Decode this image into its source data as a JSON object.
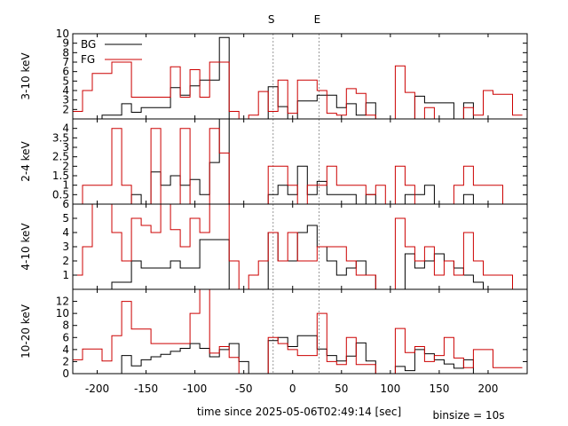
{
  "chart_data": {
    "type": "line",
    "step": true,
    "xlabel": "time since 2025-05-06T02:49:14 [sec]",
    "annotation": "binsize = 10s",
    "markers": [
      {
        "label": "S",
        "x": -20
      },
      {
        "label": "E",
        "x": 27
      }
    ],
    "xlim": [
      -225,
      240
    ],
    "xticks": [
      -200,
      -150,
      -100,
      -50,
      0,
      50,
      100,
      150,
      200
    ],
    "x_edges": [
      -225,
      -215,
      -205,
      -195,
      -185,
      -175,
      -165,
      -155,
      -145,
      -135,
      -125,
      -115,
      -105,
      -95,
      -85,
      -75,
      -65,
      -55,
      -45,
      -35,
      -25,
      -15,
      -5,
      5,
      15,
      25,
      35,
      45,
      55,
      65,
      75,
      85,
      95,
      105,
      115,
      125,
      135,
      145,
      155,
      165,
      175,
      185,
      195,
      205,
      215,
      225,
      235
    ],
    "legend": {
      "placement": "top-left",
      "entries": [
        {
          "name": "BG",
          "color": "#000000"
        },
        {
          "name": "FG",
          "color": "#cc0000"
        }
      ]
    },
    "panels": [
      {
        "ylabel": "3-10 keV",
        "ylim": [
          1,
          10
        ],
        "yticks": [
          2,
          3,
          4,
          5,
          6,
          7,
          8,
          9,
          10
        ],
        "series": [
          {
            "name": "BG",
            "values": [
              1,
              1,
              1,
              1.4,
              1.4,
              2.6,
              1.7,
              2.2,
              2.2,
              2.2,
              4.3,
              3.5,
              4.5,
              5.1,
              5.1,
              9.6,
              1,
              1,
              1,
              1,
              4.4,
              2.3,
              1,
              2.9,
              2.9,
              3.5,
              3.5,
              2.2,
              2.6,
              1.4,
              2.7,
              1,
              1,
              1,
              1,
              3.4,
              2.7,
              2.7,
              2.7,
              1,
              2.7,
              1,
              1,
              1,
              1,
              1
            ]
          },
          {
            "name": "FG",
            "values": [
              1.8,
              4,
              5.8,
              5.8,
              7,
              7,
              3.3,
              3.3,
              3.3,
              3.3,
              6.5,
              3.3,
              6.2,
              3.3,
              7,
              7,
              1.8,
              1,
              1.4,
              3.9,
              1.8,
              5.1,
              1.6,
              5.1,
              5.1,
              4,
              1.6,
              1.4,
              4.2,
              3.7,
              1.4,
              1,
              1,
              6.6,
              3.8,
              1,
              2.2,
              1,
              1,
              1,
              2.2,
              1.4,
              4,
              3.6,
              3.6,
              1.4
            ]
          }
        ]
      },
      {
        "ylabel": "2-4 keV",
        "ylim": [
          0,
          4.5
        ],
        "yticks": [
          0.5,
          1,
          1.5,
          2,
          2.5,
          3,
          3.5,
          4
        ],
        "series": [
          {
            "name": "BG",
            "values": [
              0,
              0,
              0,
              0,
              0,
              0,
              0.5,
              0,
              1.7,
              1.0,
              1.5,
              1.0,
              1.3,
              0.5,
              2.2,
              4.5,
              0,
              0,
              0,
              0,
              0.5,
              1.0,
              0.5,
              2.0,
              0.5,
              1.2,
              0.5,
              0.5,
              0.5,
              0,
              0.5,
              0,
              0,
              0,
              0.5,
              0.5,
              1.0,
              0,
              0,
              0,
              0.5,
              0,
              0,
              0,
              0,
              0
            ]
          },
          {
            "name": "FG",
            "values": [
              0,
              1,
              1,
              1,
              4,
              1,
              0,
              0,
              4,
              0,
              0,
              4,
              0,
              0,
              4,
              2.7,
              0,
              0,
              0,
              0,
              2,
              2,
              1,
              0,
              1,
              1,
              2,
              1,
              1,
              1,
              0.5,
              1,
              0,
              2,
              1,
              0,
              0,
              0,
              0,
              1,
              2,
              1,
              1,
              1,
              0,
              0
            ]
          }
        ]
      },
      {
        "ylabel": "4-10 keV",
        "ylim": [
          0,
          6
        ],
        "yticks": [
          1,
          2,
          3,
          4,
          5,
          6
        ],
        "series": [
          {
            "name": "BG",
            "values": [
              0,
              0,
              0,
              0,
              0.5,
              0.5,
              2,
              1.5,
              1.5,
              1.5,
              2,
              1.5,
              1.5,
              3.5,
              3.5,
              3.5,
              0,
              0,
              0,
              0,
              4,
              2,
              2,
              4,
              4.5,
              3,
              2,
              1,
              1.5,
              2,
              1,
              0,
              0,
              0,
              2.5,
              1.5,
              2,
              2.5,
              2,
              1.5,
              1,
              0.5,
              0,
              0,
              0,
              0
            ]
          },
          {
            "name": "FG",
            "values": [
              1,
              3,
              6,
              6,
              4,
              2,
              5,
              4.5,
              4,
              6,
              4.2,
              3,
              5,
              4,
              6,
              6,
              2,
              0,
              1,
              2,
              4,
              2,
              4,
              2,
              2,
              3,
              3,
              3,
              2,
              1,
              1,
              0,
              0,
              5,
              3,
              2,
              3,
              1,
              2,
              1,
              4,
              2,
              1,
              1,
              1,
              0
            ]
          }
        ]
      },
      {
        "ylabel": "10-20 keV",
        "ylim": [
          0,
          14
        ],
        "yticks": [
          0,
          2,
          4,
          6,
          8,
          10,
          12
        ],
        "series": [
          {
            "name": "BG",
            "values": [
              0,
              0,
              0,
              0,
              0,
              3,
              1.3,
              2.3,
              2.8,
              3.2,
              3.7,
              4.2,
              5,
              4.2,
              2.8,
              4,
              5,
              2,
              0,
              0,
              5.5,
              6,
              4.5,
              6.3,
              6.3,
              4.1,
              3,
              2.1,
              2.9,
              5.1,
              2.1,
              0,
              0,
              1.2,
              0.5,
              4,
              3.3,
              2.3,
              1.6,
              0.9,
              2.3,
              0,
              0,
              0,
              0,
              0
            ]
          },
          {
            "name": "FG",
            "values": [
              2.3,
              4.1,
              4.1,
              2.1,
              6.3,
              12,
              7.4,
              7.4,
              5,
              5,
              5,
              5,
              10,
              14,
              3.4,
              4.5,
              2.7,
              0,
              0,
              0,
              6,
              5,
              4,
              3,
              3,
              10,
              2,
              1.5,
              6,
              1.5,
              1.5,
              0,
              0,
              7.5,
              3.5,
              4.5,
              2,
              3,
              6,
              2.6,
              1,
              4,
              4,
              1,
              1,
              1
            ]
          }
        ]
      }
    ]
  }
}
